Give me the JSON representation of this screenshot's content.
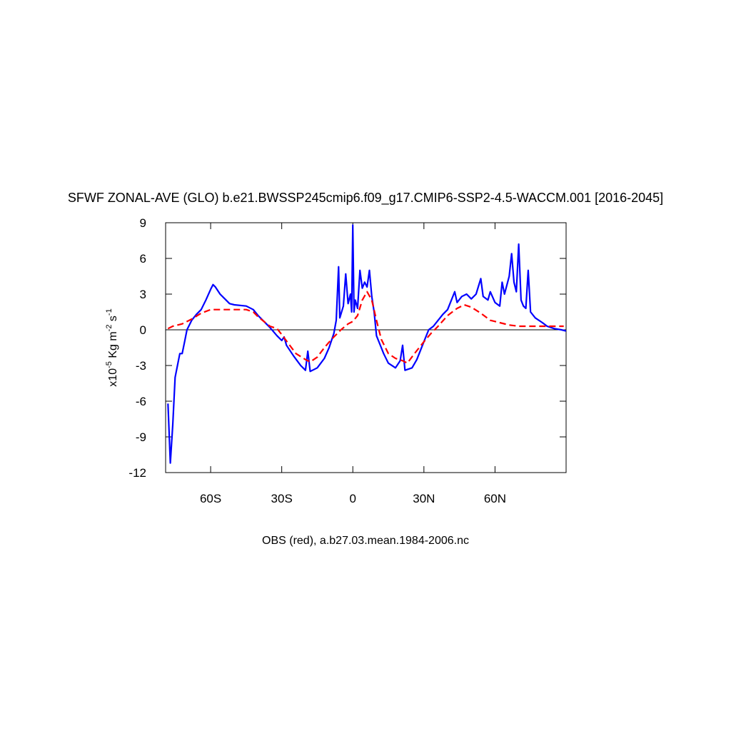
{
  "chart_data": {
    "type": "line",
    "title": "SFWF ZONAL-AVE (GLO) b.e21.BWSSP245cmip6.f09_g17.CMIP6-SSP2-4.5-WACCM.001 [2016-2045]",
    "xlabel": "OBS (red), a.b27.03.mean.1984-2006.nc",
    "ylabel_parts": [
      {
        "text": "x10"
      },
      {
        "text": "-5",
        "sup": true
      },
      {
        "text": " Kg m"
      },
      {
        "text": "-2",
        "sup": true
      },
      {
        "text": " s"
      },
      {
        "text": "-1",
        "sup": true
      }
    ],
    "xlim": [
      -79,
      90
    ],
    "xticks": [
      {
        "value": -60,
        "label": "60S"
      },
      {
        "value": -30,
        "label": "30S"
      },
      0,
      {
        "value": 30,
        "label": "30N"
      },
      {
        "value": 60,
        "label": "60N"
      }
    ],
    "ylim": [
      -12,
      9
    ],
    "yticks": [
      -12,
      -9,
      -6,
      -3,
      0,
      3,
      6,
      9
    ],
    "hline": 0,
    "series": [
      {
        "color": "#0000ff",
        "dash": false,
        "x": [
          -78,
          -77,
          -76,
          -75,
          -74,
          -73,
          -72,
          -71,
          -70,
          -68,
          -66,
          -64,
          -62,
          -60,
          -59,
          -58,
          -56,
          -54,
          -52,
          -50,
          -45,
          -42,
          -40,
          -35,
          -32,
          -30,
          -29,
          -28,
          -25,
          -22,
          -20,
          -19,
          -18,
          -15,
          -12,
          -10,
          -8,
          -7,
          -6,
          -5.5,
          -4,
          -3,
          -2,
          -1,
          -0.5,
          0,
          0.5,
          1,
          2,
          3,
          4,
          5,
          6,
          7,
          8,
          9,
          10,
          12,
          13,
          15,
          18,
          20,
          21,
          22,
          25,
          27,
          30,
          32,
          34,
          36,
          38,
          40,
          43,
          44,
          46,
          48,
          50,
          52,
          54,
          55,
          57,
          58,
          60,
          62,
          63,
          64,
          66,
          67,
          68,
          69,
          70,
          71,
          72,
          73,
          74,
          75,
          77,
          80,
          82,
          85,
          88,
          90
        ],
        "values": [
          -6.2,
          -11.2,
          -8,
          -4,
          -3,
          -2,
          -2,
          -1,
          0,
          0.8,
          1.3,
          1.7,
          2.5,
          3.4,
          3.8,
          3.6,
          3.0,
          2.6,
          2.2,
          2.1,
          2.0,
          1.7,
          1.2,
          0.2,
          -0.5,
          -0.9,
          -0.6,
          -1.3,
          -2.2,
          -3.0,
          -3.4,
          -1.8,
          -3.5,
          -3.2,
          -2.4,
          -1.5,
          -0.3,
          0.8,
          5.3,
          1.0,
          2.0,
          4.7,
          2.2,
          3.0,
          1.5,
          8.8,
          1.5,
          2.5,
          1.8,
          5.0,
          3.5,
          4.0,
          3.6,
          5.0,
          2.8,
          1.5,
          -0.5,
          -1.5,
          -2.0,
          -2.8,
          -3.2,
          -2.6,
          -1.3,
          -3.4,
          -3.2,
          -2.5,
          -1.0,
          0,
          0.3,
          0.8,
          1.3,
          1.7,
          3.2,
          2.3,
          2.8,
          3.0,
          2.6,
          3.0,
          4.3,
          2.8,
          2.5,
          3.2,
          2.3,
          2.0,
          4.0,
          3.0,
          4.5,
          6.4,
          4.0,
          3.2,
          7.2,
          2.5,
          2.0,
          1.8,
          5.0,
          1.5,
          1.0,
          0.6,
          0.3,
          0.1,
          0.0,
          -0.1
        ]
      },
      {
        "color": "#ff0000",
        "dash": true,
        "x": [
          -78,
          -76,
          -72,
          -68,
          -64,
          -60,
          -55,
          -50,
          -45,
          -42,
          -40,
          -35,
          -32,
          -30,
          -27,
          -24,
          -20,
          -18,
          -15,
          -12,
          -9,
          -5,
          -2,
          0,
          2,
          4,
          6,
          8,
          10,
          12,
          15,
          18,
          21,
          23,
          26,
          30,
          33,
          36,
          40,
          44,
          47,
          50,
          54,
          58,
          62,
          66,
          70,
          75,
          80,
          85,
          89
        ],
        "values": [
          0.1,
          0.3,
          0.5,
          0.9,
          1.4,
          1.7,
          1.7,
          1.7,
          1.7,
          1.5,
          1.1,
          0.3,
          0.1,
          -0.4,
          -1.2,
          -2.0,
          -2.5,
          -2.7,
          -2.3,
          -1.5,
          -0.8,
          0,
          0.5,
          0.7,
          1.2,
          2.5,
          3.2,
          2.5,
          0.8,
          -0.8,
          -2.0,
          -2.4,
          -2.6,
          -2.8,
          -2.0,
          -1.0,
          -0.3,
          0.3,
          1.2,
          1.8,
          2.1,
          1.9,
          1.4,
          0.8,
          0.6,
          0.4,
          0.3,
          0.3,
          0.3,
          0.3,
          0.3
        ]
      }
    ]
  }
}
